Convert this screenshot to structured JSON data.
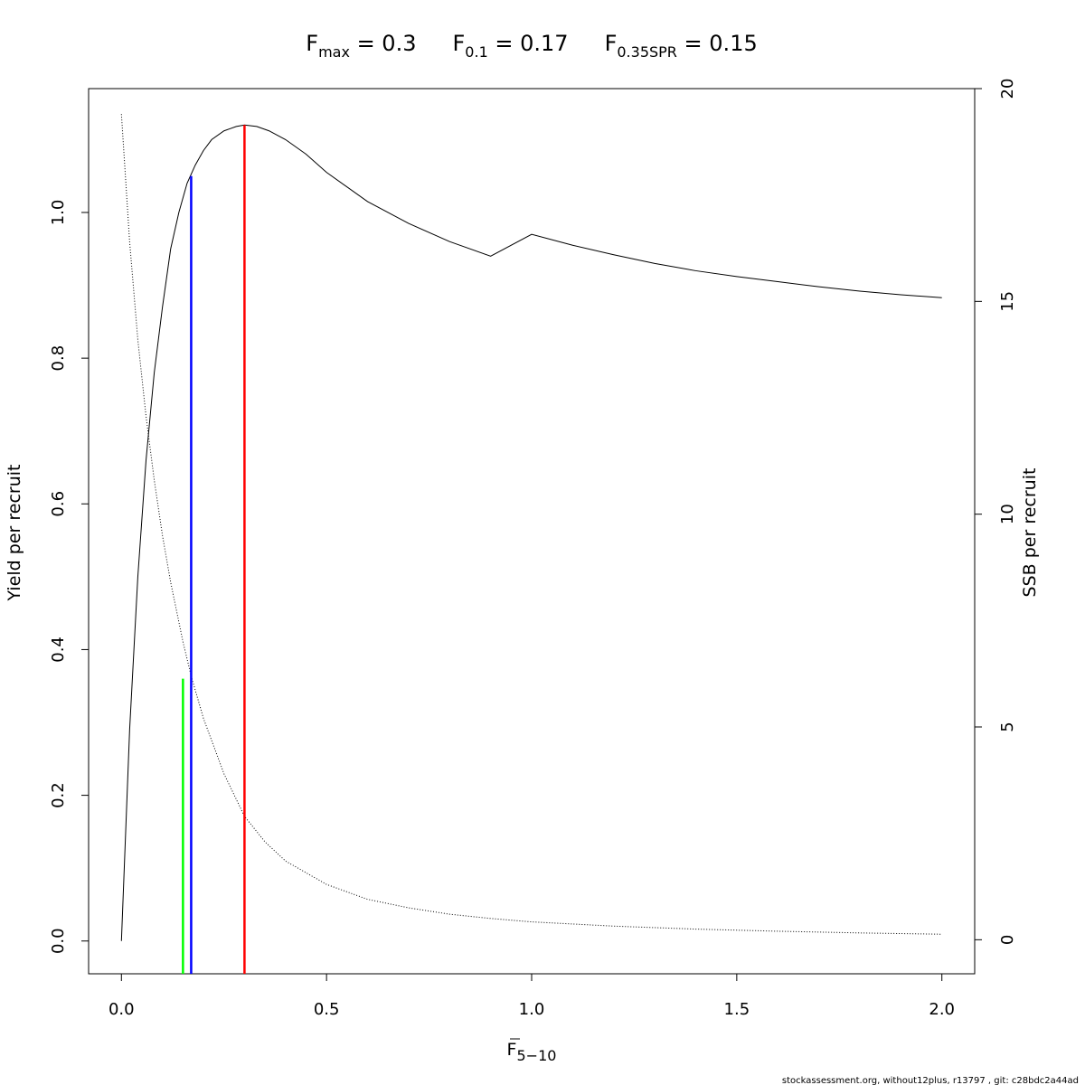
{
  "chart_data": {
    "type": "line",
    "title_parts": [
      {
        "main": "F",
        "sub": "max",
        "rest": " = 0.3"
      },
      {
        "main": "F",
        "sub": "0.1",
        "rest": " = 0.17"
      },
      {
        "main": "F",
        "sub": "0.35SPR",
        "rest": " = 0.15"
      }
    ],
    "xlabel": {
      "main": "F",
      "sub": "5−10"
    },
    "ylabel": "Yield per recruit",
    "y2label": "SSB per recruit",
    "xlim": [
      -0.08,
      2.08
    ],
    "ylim": [
      -0.045,
      1.17
    ],
    "y2lim": [
      -0.8,
      20
    ],
    "x_ticks": [
      {
        "value": 0,
        "label": "0.0"
      },
      {
        "value": 0.5,
        "label": "0.5"
      },
      {
        "value": 1,
        "label": "1.0"
      },
      {
        "value": 1.5,
        "label": "1.5"
      },
      {
        "value": 2,
        "label": "2.0"
      }
    ],
    "y_ticks": [
      {
        "value": 0,
        "label": "0.0"
      },
      {
        "value": 0.2,
        "label": "0.2"
      },
      {
        "value": 0.4,
        "label": "0.4"
      },
      {
        "value": 0.6,
        "label": "0.6"
      },
      {
        "value": 0.8,
        "label": "0.8"
      },
      {
        "value": 1.0,
        "label": "1.0"
      }
    ],
    "y2_ticks": [
      {
        "value": 0,
        "label": "0"
      },
      {
        "value": 5,
        "label": "5"
      },
      {
        "value": 10,
        "label": "10"
      },
      {
        "value": 15,
        "label": "15"
      },
      {
        "value": 20,
        "label": "20"
      }
    ],
    "series": [
      {
        "axis": "left",
        "style": "solid",
        "color": "#000000",
        "x": [
          0,
          0.02,
          0.04,
          0.06,
          0.08,
          0.1,
          0.12,
          0.14,
          0.16,
          0.18,
          0.2,
          0.22,
          0.25,
          0.28,
          0.3,
          0.33,
          0.36,
          0.4,
          0.45,
          0.5,
          0.6,
          0.7,
          0.8,
          0.9,
          1.0,
          1.1,
          1.2,
          1.3,
          1.4,
          1.5,
          1.6,
          1.7,
          1.8,
          1.9,
          2.0
        ],
        "y": [
          0,
          0.29,
          0.5,
          0.66,
          0.78,
          0.87,
          0.95,
          1.0,
          1.04,
          1.065,
          1.085,
          1.1,
          1.112,
          1.118,
          1.12,
          1.118,
          1.112,
          1.1,
          1.08,
          1.055,
          1.015,
          0.985,
          0.96,
          0.94,
          0.97,
          0.955,
          0.942,
          0.93,
          0.92,
          0.912,
          0.905,
          0.898,
          0.892,
          0.887,
          0.883
        ]
      },
      {
        "axis": "right",
        "style": "dotted",
        "color": "#000000",
        "x": [
          0,
          0.02,
          0.04,
          0.06,
          0.08,
          0.1,
          0.12,
          0.15,
          0.17,
          0.2,
          0.25,
          0.3,
          0.35,
          0.4,
          0.5,
          0.6,
          0.7,
          0.8,
          0.9,
          1.0,
          1.2,
          1.4,
          1.6,
          1.8,
          2.0
        ],
        "y": [
          19.4,
          16.4,
          14.1,
          12.3,
          10.8,
          9.5,
          8.4,
          7.0,
          6.2,
          5.2,
          3.9,
          2.9,
          2.3,
          1.85,
          1.3,
          0.95,
          0.75,
          0.6,
          0.5,
          0.42,
          0.32,
          0.25,
          0.2,
          0.16,
          0.13
        ]
      }
    ],
    "reference_lines": [
      {
        "x": 0.15,
        "y_top": 0.36,
        "color": "#00ff00"
      },
      {
        "x": 0.17,
        "y_top": 1.05,
        "color": "#0000ff"
      },
      {
        "x": 0.3,
        "y_top": 1.12,
        "color": "#ff0000"
      }
    ]
  },
  "footer": "stockassessment.org, without12plus, r13797 , git: c28bdc2a44ad"
}
